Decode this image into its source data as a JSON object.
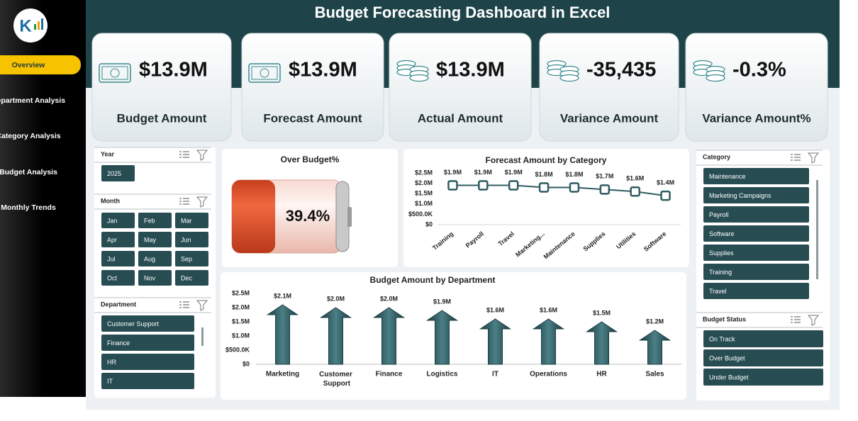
{
  "title": "Budget Forecasting Dashboard in Excel",
  "nav": [
    "Overview",
    "Department Analysis",
    "Category Analysis",
    "Budget Analysis",
    "Monthly Trends"
  ],
  "kpis": [
    {
      "value": "$13.9M",
      "label": "Budget Amount"
    },
    {
      "value": "$13.9M",
      "label": "Forecast Amount"
    },
    {
      "value": "$13.9M",
      "label": "Actual Amount"
    },
    {
      "value": "-35,435",
      "label": "Variance Amount"
    },
    {
      "value": "-0.3%",
      "label": "Variance Amount%"
    }
  ],
  "slicers": {
    "year": {
      "title": "Year",
      "items": [
        "2025"
      ]
    },
    "month": {
      "title": "Month",
      "items": [
        "Jan",
        "Feb",
        "Mar",
        "Apr",
        "May",
        "Jun",
        "Jul",
        "Aug",
        "Sep",
        "Oct",
        "Nov",
        "Dec"
      ]
    },
    "department": {
      "title": "Department",
      "items": [
        "Customer Support",
        "Finance",
        "HR",
        "IT"
      ]
    },
    "category": {
      "title": "Category",
      "items": [
        "Maintenance",
        "Marketing Campaigns",
        "Payroll",
        "Software",
        "Supplies",
        "Training",
        "Travel"
      ]
    },
    "budget_status": {
      "title": "Budget Status",
      "items": [
        "On Track",
        "Over Budget",
        "Under Budget"
      ]
    }
  },
  "chart_data": [
    {
      "type": "battery",
      "title": "Over Budget%",
      "values": [
        39.4
      ],
      "value_labels": [
        "39.4%"
      ],
      "ylim": [
        0,
        100
      ],
      "color": "#e8552f"
    },
    {
      "type": "line",
      "title": "Forecast Amount by Category",
      "categories": [
        "Training",
        "Payroll",
        "Travel",
        "Marketing...",
        "Maintenance",
        "Supplies",
        "Utilities",
        "Software"
      ],
      "values": [
        1900000,
        1900000,
        1900000,
        1800000,
        1800000,
        1700000,
        1600000,
        1400000
      ],
      "value_labels": [
        "$1.9M",
        "$1.9M",
        "$1.9M",
        "$1.8M",
        "$1.8M",
        "$1.7M",
        "$1.6M",
        "$1.4M"
      ],
      "color": "#2f5c62",
      "ylim": [
        0,
        2500000
      ],
      "yticks": [
        {
          "value": 0,
          "label": "$0"
        },
        {
          "value": 500000,
          "label": "$500.0K"
        },
        {
          "value": 1000000,
          "label": "$1.0M"
        },
        {
          "value": 1500000,
          "label": "$1.5M"
        },
        {
          "value": 2000000,
          "label": "$2.0M"
        },
        {
          "value": 2500000,
          "label": "$2.5M"
        }
      ]
    },
    {
      "type": "bar",
      "title": "Budget Amount by Department",
      "categories": [
        "Marketing",
        "Customer Support",
        "Finance",
        "Logistics",
        "IT",
        "Operations",
        "HR",
        "Sales"
      ],
      "values": [
        2100000,
        2000000,
        2000000,
        1900000,
        1600000,
        1600000,
        1500000,
        1200000
      ],
      "value_labels": [
        "$2.1M",
        "$2.0M",
        "$2.0M",
        "$1.9M",
        "$1.6M",
        "$1.6M",
        "$1.5M",
        "$1.2M"
      ],
      "color": "#2b5a60",
      "ylim": [
        0,
        2500000
      ],
      "yticks": [
        {
          "value": 0,
          "label": "$0"
        },
        {
          "value": 500000,
          "label": "$500.0K"
        },
        {
          "value": 1000000,
          "label": "$1.0M"
        },
        {
          "value": 1500000,
          "label": "$1.5M"
        },
        {
          "value": 2000000,
          "label": "$2.0M"
        },
        {
          "value": 2500000,
          "label": "$2.5M"
        }
      ]
    }
  ]
}
